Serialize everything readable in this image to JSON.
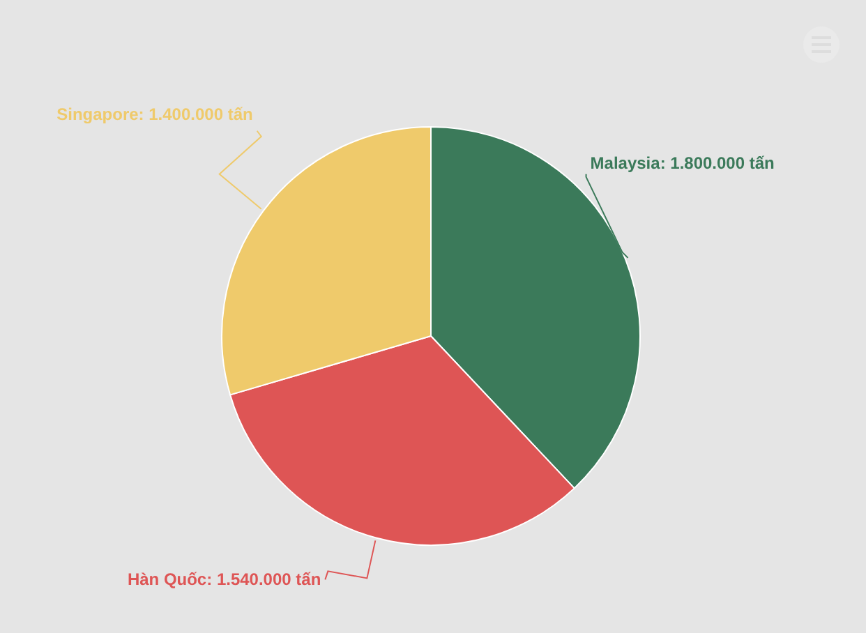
{
  "chart_data": {
    "type": "pie",
    "categories": [
      "Malaysia",
      "Hàn Quốc",
      "Singapore"
    ],
    "values": [
      1800000,
      1540000,
      1400000
    ],
    "value_labels": [
      "1.800.000 tấn",
      "1.540.000 tấn",
      "1.400.000 tấn"
    ],
    "colors": [
      "#3b7a5a",
      "#de5555",
      "#efca6b"
    ]
  }
}
